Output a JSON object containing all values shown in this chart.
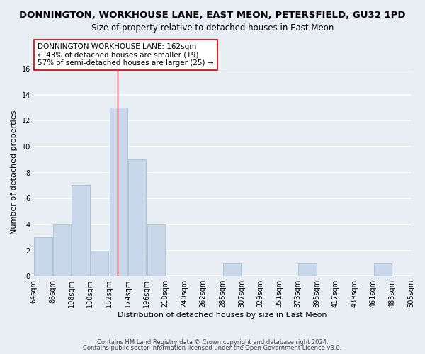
{
  "title": "DONNINGTON, WORKHOUSE LANE, EAST MEON, PETERSFIELD, GU32 1PD",
  "subtitle": "Size of property relative to detached houses in East Meon",
  "xlabel": "Distribution of detached houses by size in East Meon",
  "ylabel": "Number of detached properties",
  "bar_color": "#c8d8ea",
  "bar_edge_color": "#a8c0d8",
  "bin_labels": [
    "64sqm",
    "86sqm",
    "108sqm",
    "130sqm",
    "152sqm",
    "174sqm",
    "196sqm",
    "218sqm",
    "240sqm",
    "262sqm",
    "285sqm",
    "307sqm",
    "329sqm",
    "351sqm",
    "373sqm",
    "395sqm",
    "417sqm",
    "439sqm",
    "461sqm",
    "483sqm",
    "505sqm"
  ],
  "bar_values": [
    3,
    4,
    7,
    2,
    13,
    9,
    4,
    0,
    0,
    0,
    1,
    0,
    0,
    0,
    1,
    0,
    0,
    0,
    1,
    0
  ],
  "vline_x": 162,
  "vline_color": "#cc0000",
  "bin_edges": [
    64,
    86,
    108,
    130,
    152,
    174,
    196,
    218,
    240,
    262,
    285,
    307,
    329,
    351,
    373,
    395,
    417,
    439,
    461,
    483,
    505
  ],
  "annotation_line1": "DONNINGTON WORKHOUSE LANE: 162sqm",
  "annotation_line2": "← 43% of detached houses are smaller (19)",
  "annotation_line3": "57% of semi-detached houses are larger (25) →",
  "annotation_box_color": "#ffffff",
  "annotation_box_edge": "#cc0000",
  "ylim": [
    0,
    16
  ],
  "yticks": [
    0,
    2,
    4,
    6,
    8,
    10,
    12,
    14,
    16
  ],
  "footer1": "Contains HM Land Registry data © Crown copyright and database right 2024.",
  "footer2": "Contains public sector information licensed under the Open Government Licence v3.0.",
  "background_color": "#e8eef4",
  "plot_bg_color": "#e8eef4",
  "grid_color": "#ffffff",
  "title_fontsize": 9.5,
  "subtitle_fontsize": 8.5,
  "axis_label_fontsize": 8,
  "tick_fontsize": 7,
  "annotation_fontsize": 7.5,
  "footer_fontsize": 6
}
